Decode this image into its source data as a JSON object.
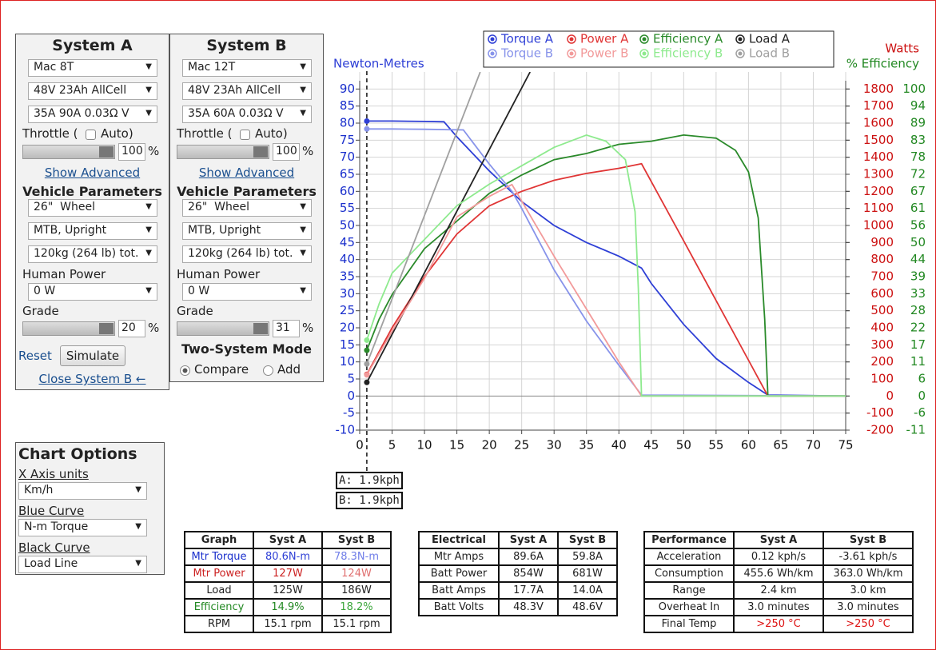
{
  "system_a": {
    "title": "System A",
    "motor": "Mac 8T",
    "battery": "48V 23Ah AllCell",
    "controller": "35A 90A 0.03Ω V",
    "throttle_label": "Throttle (",
    "auto_label": "Auto)",
    "throttle_value": "100",
    "throttle_unit": "%",
    "show_advanced": "Show Advanced",
    "vehicle_title": "Vehicle Parameters",
    "wheel": "26\"  Wheel",
    "bike": "MTB, Upright",
    "weight": "120kg (264 lb) tot.",
    "human_power_label": "Human Power",
    "human_power": "0 W",
    "grade_label": "Grade",
    "grade_value": "20",
    "grade_unit": "%",
    "reset": "Reset",
    "simulate": "Simulate",
    "close": "Close System B ←"
  },
  "system_b": {
    "title": "System B",
    "motor": "Mac 12T",
    "battery": "48V 23Ah AllCell",
    "controller": "35A 60A 0.03Ω V",
    "throttle_label": "Throttle (",
    "auto_label": "Auto)",
    "throttle_value": "100",
    "throttle_unit": "%",
    "show_advanced": "Show Advanced",
    "vehicle_title": "Vehicle Parameters",
    "wheel": "26\"  Wheel",
    "bike": "MTB, Upright",
    "weight": "120kg (264 lb) tot.",
    "human_power_label": "Human Power",
    "human_power": "0 W",
    "grade_label": "Grade",
    "grade_value": "31",
    "grade_unit": "%",
    "two_system_mode": "Two-System Mode",
    "compare": "Compare",
    "add": "Add"
  },
  "chart_options": {
    "title": "Chart Options",
    "x_units_label": "X Axis units",
    "x_units": "Km/h",
    "blue_label": "Blue Curve",
    "blue": "N-m Torque",
    "black_label": "Black Curve",
    "black": "Load Line"
  },
  "chart_data": {
    "type": "line",
    "ylabel": "Newton-Metres",
    "y2label": "Watts",
    "y3label": "% Efficiency",
    "xlim": [
      0,
      75
    ],
    "xticks": [
      0,
      5,
      10,
      15,
      20,
      25,
      30,
      35,
      40,
      45,
      50,
      55,
      60,
      65,
      70,
      75
    ],
    "ylim": [
      -10,
      95
    ],
    "yticks": [
      -10,
      -5,
      0,
      5,
      10,
      15,
      20,
      25,
      30,
      35,
      40,
      45,
      50,
      55,
      60,
      65,
      70,
      75,
      80,
      85,
      90
    ],
    "y2lim": [
      -200,
      1900
    ],
    "y2ticks": [
      -200,
      -100,
      0,
      100,
      200,
      300,
      400,
      500,
      600,
      700,
      800,
      900,
      1000,
      1100,
      1200,
      1300,
      1400,
      1500,
      1600,
      1700,
      1800
    ],
    "y3lim": [
      -11.111,
      105.556
    ],
    "y3ticks": [
      {
        "value": -11.111,
        "label": "-11"
      },
      {
        "value": -5.556,
        "label": "-6"
      },
      {
        "value": 0,
        "label": "0"
      },
      {
        "value": 5.556,
        "label": "6"
      },
      {
        "value": 11.111,
        "label": "11"
      },
      {
        "value": 16.667,
        "label": "17"
      },
      {
        "value": 22.222,
        "label": "22"
      },
      {
        "value": 27.778,
        "label": "28"
      },
      {
        "value": 33.333,
        "label": "33"
      },
      {
        "value": 38.889,
        "label": "39"
      },
      {
        "value": 44.444,
        "label": "44"
      },
      {
        "value": 50,
        "label": "50"
      },
      {
        "value": 55.556,
        "label": "56"
      },
      {
        "value": 61.111,
        "label": "61"
      },
      {
        "value": 66.667,
        "label": "67"
      },
      {
        "value": 72.222,
        "label": "72"
      },
      {
        "value": 77.778,
        "label": "78"
      },
      {
        "value": 83.333,
        "label": "83"
      },
      {
        "value": 88.889,
        "label": "89"
      },
      {
        "value": 94.444,
        "label": "94"
      },
      {
        "value": 100,
        "label": "100"
      }
    ],
    "grid": true,
    "series": [
      {
        "name": "Torque A",
        "color": "#2e3fd6",
        "axis": "y",
        "x": [
          1.1,
          5,
          10,
          13,
          15,
          20,
          25,
          30,
          35,
          40,
          43.5,
          45,
          50,
          55,
          60,
          63,
          75
        ],
        "values": [
          80.6,
          80.6,
          80.5,
          80.4,
          76,
          66,
          57,
          50,
          45,
          41,
          37.5,
          33,
          21,
          11,
          4,
          0.3,
          0
        ]
      },
      {
        "name": "Power A",
        "color": "#e03535",
        "axis": "y2",
        "x": [
          1.1,
          5,
          10,
          15,
          20,
          25,
          30,
          35,
          40,
          43.5,
          50,
          55,
          60,
          63,
          75
        ],
        "values": [
          127,
          400,
          700,
          950,
          1115,
          1200,
          1265,
          1305,
          1335,
          1362,
          910,
          560,
          210,
          0,
          0
        ]
      },
      {
        "name": "Efficiency A",
        "color": "#2a8a2a",
        "axis": "y3",
        "x": [
          1.1,
          3,
          5,
          10,
          15,
          20,
          25,
          30,
          35,
          40,
          45,
          50,
          55,
          58,
          60,
          61.5,
          62.5,
          63,
          75
        ],
        "values": [
          14.9,
          25,
          33,
          48,
          57,
          66,
          72,
          77,
          79,
          82,
          83,
          85,
          84,
          80,
          73,
          58,
          25,
          0,
          0
        ]
      },
      {
        "name": "Load A",
        "color": "#222222",
        "axis": "y",
        "x": [
          1.1,
          26.3
        ],
        "values": [
          4,
          95
        ]
      },
      {
        "name": "Torque B",
        "color": "#8793ea",
        "axis": "y",
        "x": [
          1.1,
          5,
          10,
          16,
          20,
          23.5,
          25,
          30,
          35,
          40,
          43.5,
          75
        ],
        "values": [
          78.3,
          78.3,
          78.2,
          78,
          68,
          60,
          55,
          37,
          22,
          9,
          0.3,
          0
        ]
      },
      {
        "name": "Power B",
        "color": "#f29a9a",
        "axis": "y2",
        "x": [
          1.1,
          5,
          10,
          15,
          20,
          23.5,
          30,
          35,
          40,
          43.5,
          75
        ],
        "values": [
          124,
          380,
          690,
          1050,
          1170,
          1240,
          820,
          510,
          200,
          0,
          0
        ]
      },
      {
        "name": "Efficiency B",
        "color": "#8eea8e",
        "axis": "y3",
        "x": [
          1.1,
          3,
          5,
          10,
          15,
          20,
          25,
          30,
          35,
          38,
          41,
          42.5,
          43,
          43.5,
          75
        ],
        "values": [
          18.2,
          30,
          40,
          51,
          62,
          69,
          75,
          81,
          85,
          83,
          77,
          60,
          35,
          0,
          0
        ]
      },
      {
        "name": "Load B",
        "color": "#a0a0a0",
        "axis": "y",
        "x": [
          1.1,
          18.6
        ],
        "values": [
          9.4,
          95
        ]
      }
    ],
    "cursor_labels": [
      "A: 1.9kph",
      "B: 1.9kph"
    ]
  },
  "tables": [
    {
      "header": [
        "Graph",
        "Syst A",
        "Syst B"
      ],
      "rows": [
        [
          "Mtr Torque",
          "80.6N-m",
          "78.3N-m"
        ],
        [
          "Mtr Power",
          "127W",
          "124W"
        ],
        [
          "Load",
          "125W",
          "186W"
        ],
        [
          "Efficiency",
          "14.9%",
          "18.2%"
        ],
        [
          "RPM",
          "15.1 rpm",
          "15.1 rpm"
        ]
      ]
    },
    {
      "header": [
        "Electrical",
        "Syst A",
        "Syst B"
      ],
      "rows": [
        [
          "Mtr Amps",
          "89.6A",
          "59.8A"
        ],
        [
          "Batt Power",
          "854W",
          "681W"
        ],
        [
          "Batt Amps",
          "17.7A",
          "14.0A"
        ],
        [
          "Batt Volts",
          "48.3V",
          "48.6V"
        ]
      ]
    },
    {
      "header": [
        "Performance",
        "Syst A",
        "Syst B"
      ],
      "rows": [
        [
          "Acceleration",
          "0.12 kph/s",
          "-3.61 kph/s"
        ],
        [
          "Consumption",
          "455.6 Wh/km",
          "363.0 Wh/km"
        ],
        [
          "Range",
          "2.4 km",
          "3.0 km"
        ],
        [
          "Overheat In",
          "3.0 minutes",
          "3.0 minutes"
        ],
        [
          "Final Temp",
          ">250 °C",
          ">250 °C"
        ]
      ]
    }
  ]
}
